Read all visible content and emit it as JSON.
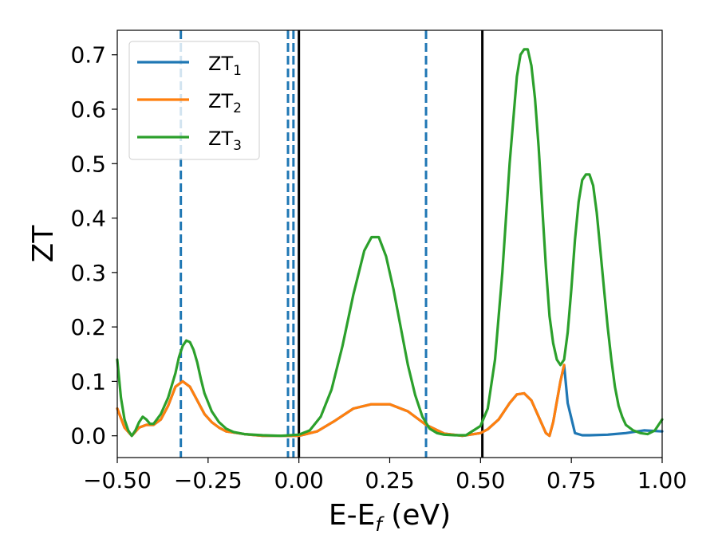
{
  "chart_data": {
    "type": "line",
    "xlabel": {
      "main": "E-E",
      "sub": "f",
      "suffix": " (eV)"
    },
    "ylabel": "ZT",
    "xlim": [
      -0.5,
      1.0
    ],
    "ylim": [
      -0.04,
      0.745
    ],
    "x_ticks": [
      -0.5,
      -0.25,
      0.0,
      0.25,
      0.5,
      0.75,
      1.0
    ],
    "x_tick_labels": [
      "−0.50",
      "−0.25",
      "0.00",
      "0.25",
      "0.50",
      "0.75",
      "1.00"
    ],
    "y_ticks": [
      0.0,
      0.1,
      0.2,
      0.3,
      0.4,
      0.5,
      0.6,
      0.7
    ],
    "y_tick_labels": [
      "0.0",
      "0.1",
      "0.2",
      "0.3",
      "0.4",
      "0.5",
      "0.6",
      "0.7"
    ],
    "grid": false,
    "legend_position": "top-left",
    "vlines_dashed": {
      "x": [
        -0.325,
        -0.03,
        -0.015,
        0.35
      ],
      "color": "#1f77b4"
    },
    "vlines_solid": {
      "x": [
        0.0,
        0.505
      ],
      "color": "#000000"
    },
    "series": [
      {
        "name": "ZT",
        "sub": "1",
        "color": "#1f77b4",
        "x": [
          -0.5,
          -0.48,
          -0.46,
          -0.44,
          -0.42,
          -0.4,
          -0.38,
          -0.36,
          -0.34,
          -0.32,
          -0.3,
          -0.28,
          -0.26,
          -0.24,
          -0.22,
          -0.2,
          -0.15,
          -0.1,
          -0.05,
          0.0,
          0.05,
          0.1,
          0.15,
          0.2,
          0.25,
          0.3,
          0.35,
          0.4,
          0.45,
          0.5,
          0.52,
          0.55,
          0.58,
          0.6,
          0.62,
          0.64,
          0.66,
          0.68,
          0.69,
          0.7,
          0.72,
          0.73,
          0.74,
          0.76,
          0.78,
          0.8,
          0.85,
          0.9,
          0.95,
          1.0
        ],
        "y": [
          0.05,
          0.015,
          0.0,
          0.015,
          0.02,
          0.02,
          0.03,
          0.055,
          0.09,
          0.1,
          0.09,
          0.065,
          0.04,
          0.025,
          0.015,
          0.008,
          0.003,
          0.0,
          0.0,
          0.0,
          0.008,
          0.028,
          0.05,
          0.058,
          0.058,
          0.045,
          0.02,
          0.004,
          0.0,
          0.005,
          0.012,
          0.03,
          0.06,
          0.076,
          0.078,
          0.065,
          0.035,
          0.005,
          0.0,
          0.025,
          0.1,
          0.13,
          0.06,
          0.005,
          0.001,
          0.001,
          0.002,
          0.005,
          0.01,
          0.008
        ]
      },
      {
        "name": "ZT",
        "sub": "2",
        "color": "#ff7f0e",
        "x": [
          -0.5,
          -0.48,
          -0.46,
          -0.44,
          -0.42,
          -0.4,
          -0.38,
          -0.36,
          -0.34,
          -0.32,
          -0.3,
          -0.28,
          -0.26,
          -0.24,
          -0.22,
          -0.2,
          -0.15,
          -0.1,
          -0.05,
          0.0,
          0.05,
          0.1,
          0.15,
          0.2,
          0.25,
          0.3,
          0.35,
          0.4,
          0.45,
          0.5,
          0.52,
          0.55,
          0.58,
          0.6,
          0.62,
          0.64,
          0.66,
          0.68,
          0.69,
          0.7,
          0.72,
          0.73
        ],
        "y": [
          0.05,
          0.015,
          0.0,
          0.015,
          0.02,
          0.02,
          0.03,
          0.055,
          0.09,
          0.1,
          0.09,
          0.065,
          0.04,
          0.025,
          0.015,
          0.008,
          0.003,
          0.0,
          0.0,
          0.0,
          0.008,
          0.028,
          0.05,
          0.058,
          0.058,
          0.045,
          0.02,
          0.004,
          0.0,
          0.005,
          0.012,
          0.03,
          0.06,
          0.076,
          0.078,
          0.065,
          0.035,
          0.005,
          0.0,
          0.025,
          0.1,
          0.13
        ]
      },
      {
        "name": "ZT",
        "sub": "3",
        "color": "#2ca02c",
        "x": [
          -0.5,
          -0.49,
          -0.48,
          -0.47,
          -0.46,
          -0.45,
          -0.44,
          -0.43,
          -0.42,
          -0.41,
          -0.4,
          -0.38,
          -0.36,
          -0.34,
          -0.33,
          -0.32,
          -0.31,
          -0.3,
          -0.29,
          -0.28,
          -0.27,
          -0.26,
          -0.24,
          -0.22,
          -0.2,
          -0.18,
          -0.15,
          -0.1,
          -0.05,
          0.0,
          0.03,
          0.06,
          0.09,
          0.12,
          0.15,
          0.18,
          0.2,
          0.22,
          0.24,
          0.26,
          0.28,
          0.3,
          0.32,
          0.34,
          0.36,
          0.38,
          0.4,
          0.43,
          0.46,
          0.5,
          0.52,
          0.54,
          0.56,
          0.58,
          0.6,
          0.61,
          0.62,
          0.63,
          0.64,
          0.65,
          0.66,
          0.67,
          0.68,
          0.69,
          0.7,
          0.71,
          0.72,
          0.73,
          0.74,
          0.75,
          0.76,
          0.77,
          0.78,
          0.79,
          0.8,
          0.81,
          0.82,
          0.83,
          0.84,
          0.85,
          0.86,
          0.87,
          0.88,
          0.89,
          0.9,
          0.92,
          0.94,
          0.96,
          0.98,
          1.0
        ],
        "y": [
          0.14,
          0.07,
          0.03,
          0.01,
          0.0,
          0.01,
          0.025,
          0.035,
          0.03,
          0.022,
          0.022,
          0.04,
          0.07,
          0.115,
          0.145,
          0.165,
          0.175,
          0.172,
          0.158,
          0.135,
          0.105,
          0.078,
          0.045,
          0.025,
          0.013,
          0.007,
          0.003,
          0.001,
          0.0,
          0.002,
          0.01,
          0.035,
          0.085,
          0.165,
          0.26,
          0.34,
          0.365,
          0.365,
          0.33,
          0.27,
          0.2,
          0.13,
          0.075,
          0.035,
          0.013,
          0.005,
          0.002,
          0.001,
          0.001,
          0.018,
          0.05,
          0.14,
          0.3,
          0.5,
          0.66,
          0.7,
          0.71,
          0.71,
          0.68,
          0.62,
          0.53,
          0.42,
          0.31,
          0.22,
          0.17,
          0.14,
          0.13,
          0.14,
          0.19,
          0.27,
          0.36,
          0.43,
          0.47,
          0.48,
          0.48,
          0.46,
          0.41,
          0.34,
          0.27,
          0.2,
          0.14,
          0.09,
          0.055,
          0.035,
          0.02,
          0.01,
          0.005,
          0.003,
          0.01,
          0.03
        ]
      }
    ]
  }
}
